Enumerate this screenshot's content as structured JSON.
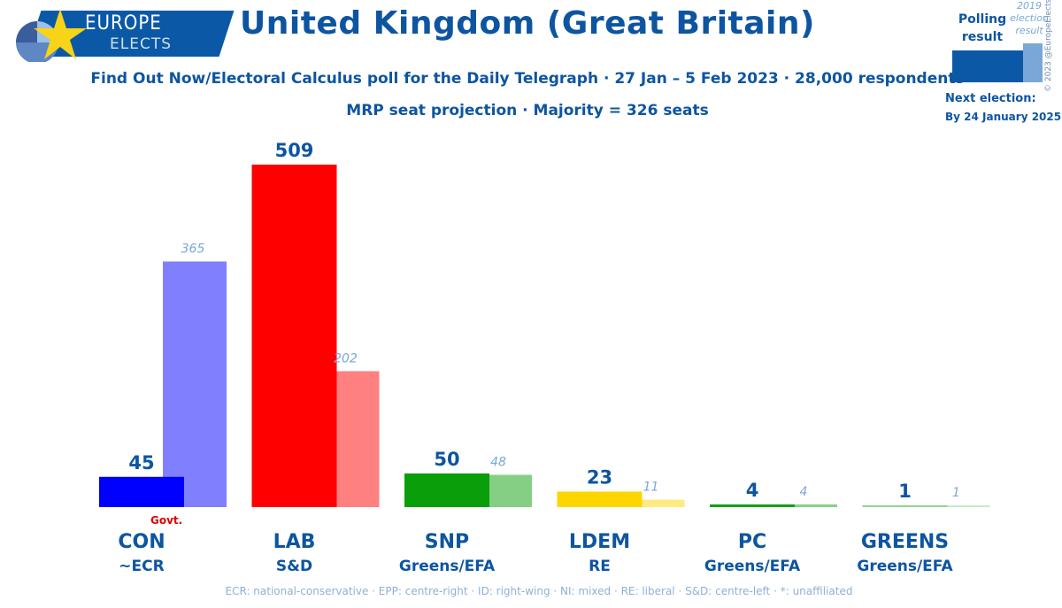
{
  "logo": {
    "line1": "EUROPE",
    "line2": "ELECTS"
  },
  "title": "United Kingdom (Great Britain)",
  "subtitle": "Find Out Now/Electoral Calculus poll for the Daily Telegraph · 27 Jan – 5 Feb 2023 · 28,000 respondents",
  "subtitle2": "MRP seat projection · Majority = 326 seats",
  "legend": {
    "polling": "Polling result",
    "previous": "2019 election result",
    "next_label": "Next election:",
    "next_date": "By 24 January 2025",
    "copyright": "© 2023 @EuropeElects"
  },
  "govt_label": "Govt.",
  "footnote": "ECR: national-conservative · EPP: centre-right · ID: right-wing · NI: mixed · RE: liberal · S&D: centre-left · *: unaffiliated",
  "chart_data": {
    "type": "bar",
    "title": "United Kingdom (Great Britain)",
    "unit": "seats",
    "ylim": [
      0,
      509
    ],
    "categories": [
      "CON",
      "LAB",
      "SNP",
      "LDEM",
      "PC",
      "GREENS"
    ],
    "groups": [
      "~ECR",
      "S&D",
      "Greens/EFA",
      "RE",
      "Greens/EFA",
      "Greens/EFA"
    ],
    "series": [
      {
        "name": "Polling result",
        "values": [
          45,
          509,
          50,
          23,
          4,
          1
        ]
      },
      {
        "name": "2019 election result",
        "values": [
          365,
          202,
          48,
          11,
          4,
          1
        ]
      }
    ],
    "colors": [
      "#0000ff",
      "#ff0000",
      "#0a9e0a",
      "#ffd500",
      "#14a014",
      "#8fd48f"
    ],
    "colors_prev": [
      "#8080ff",
      "#ff8080",
      "#85cf85",
      "#ffea80",
      "#8ad08a",
      "#c7ebc7"
    ],
    "government": "CON"
  }
}
